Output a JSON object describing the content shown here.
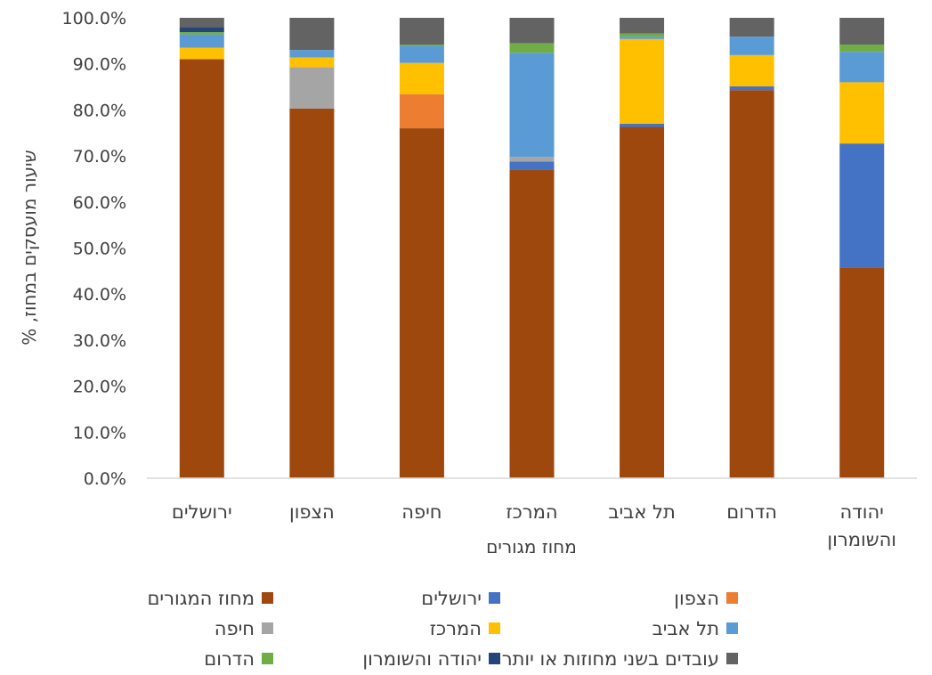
{
  "chart_data": {
    "type": "bar",
    "stacked": true,
    "ylim": [
      0,
      100
    ],
    "yticks": [
      "0.0%",
      "10.0%",
      "20.0%",
      "30.0%",
      "40.0%",
      "50.0%",
      "60.0%",
      "70.0%",
      "80.0%",
      "90.0%",
      "100.0%"
    ],
    "ylabel": "שיעור מועסקים במחוז, %",
    "xlabel": "מחוז מגורים",
    "categories": [
      "ירושלים",
      "הצפון",
      "חיפה",
      "המרכז",
      "תל אביב",
      "הדרום",
      "יהודה והשומרון"
    ],
    "category_lines": [
      [
        "ירושלים"
      ],
      [
        "הצפון"
      ],
      [
        "חיפה"
      ],
      [
        "המרכז"
      ],
      [
        "תל אביב"
      ],
      [
        "הדרום"
      ],
      [
        "יהודה",
        "והשומרון"
      ]
    ],
    "series": [
      {
        "name": "מחוז המגורים",
        "color": "#9E480E",
        "values": [
          91.0,
          80.3,
          76.0,
          67.0,
          76.3,
          84.3,
          45.8
        ]
      },
      {
        "name": "ירושלים",
        "color": "#4472C4",
        "values": [
          0.0,
          0.0,
          0.0,
          1.8,
          0.7,
          0.8,
          26.9
        ]
      },
      {
        "name": "הצפון",
        "color": "#ED7D31",
        "values": [
          0.0,
          0.0,
          7.4,
          0.0,
          0.0,
          0.0,
          0.0
        ]
      },
      {
        "name": "חיפה",
        "color": "#A5A5A5",
        "values": [
          0.0,
          9.0,
          0.0,
          1.0,
          0.0,
          0.0,
          0.0
        ]
      },
      {
        "name": "המרכז",
        "color": "#FFC000",
        "values": [
          2.5,
          2.1,
          6.8,
          0.0,
          18.4,
          6.8,
          13.3
        ]
      },
      {
        "name": "תל אביב",
        "color": "#5B9BD5",
        "values": [
          2.9,
          1.6,
          3.7,
          22.6,
          0.5,
          4.0,
          6.6
        ]
      },
      {
        "name": "הדרום",
        "color": "#70AD47",
        "values": [
          0.5,
          0.0,
          0.3,
          2.1,
          0.7,
          0.0,
          1.6
        ]
      },
      {
        "name": "יהודה והשומרון",
        "color": "#264478",
        "values": [
          1.1,
          0.0,
          0.0,
          0.0,
          0.0,
          0.0,
          0.0
        ]
      },
      {
        "name": "עובדים בשני מחוזות או יותר",
        "color": "#636363",
        "values": [
          2.0,
          7.0,
          5.8,
          5.5,
          3.4,
          4.1,
          5.8
        ]
      }
    ],
    "legend_position": "bottom",
    "grid": false
  }
}
